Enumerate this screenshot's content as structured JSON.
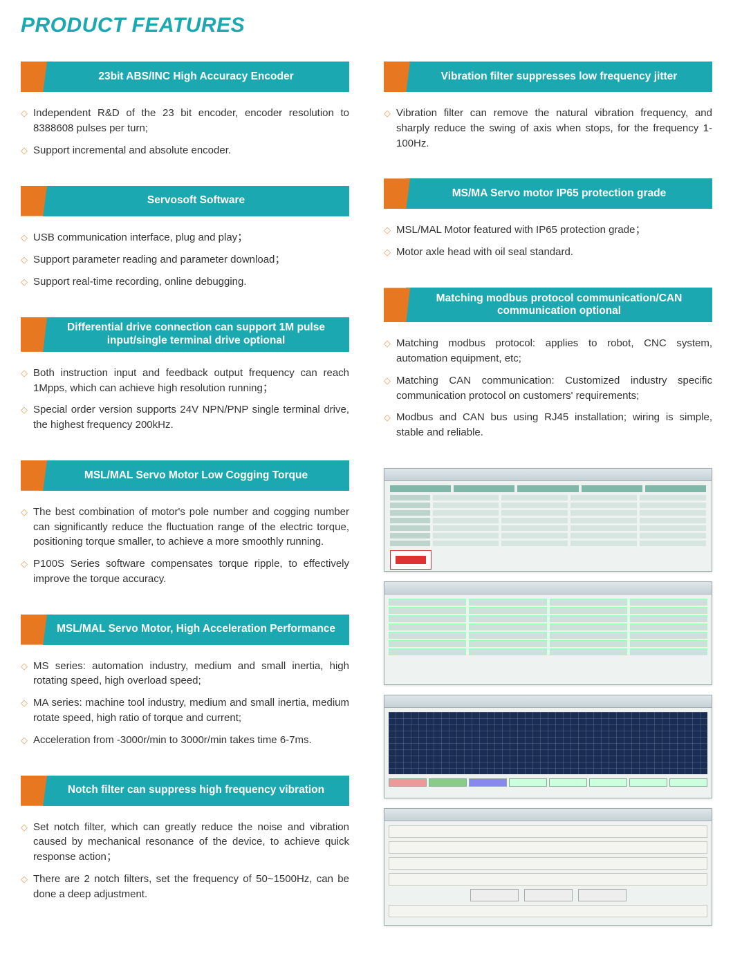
{
  "title": "PRODUCT FEATURES",
  "colors": {
    "accent_teal": "#1ba8b0",
    "accent_orange": "#e87722",
    "bullet_diamond": "#e8a05c",
    "text": "#333333",
    "background": "#ffffff"
  },
  "left": [
    {
      "heading": "23bit ABS/INC High Accuracy Encoder",
      "bullets": [
        "Independent R&D of the 23 bit encoder, encoder resolution to 8388608 pulses per turn;",
        "Support incremental and absolute encoder."
      ]
    },
    {
      "heading": "Servosoft Software",
      "bullets": [
        "USB communication interface, plug and play；",
        "Support parameter reading and parameter download；",
        "Support real-time recording, online debugging."
      ]
    },
    {
      "heading": "Differential drive connection can support 1M pulse input/single terminal drive optional",
      "tall": true,
      "bullets": [
        "Both instruction input and feedback output frequency can reach 1Mpps, which can achieve high resolution running；",
        "Special order version supports 24V NPN/PNP single terminal drive, the highest frequency 200kHz."
      ]
    },
    {
      "heading": "MSL/MAL Servo Motor Low Cogging Torque",
      "bullets": [
        "The best combination of motor's pole number and cogging number can significantly reduce the fluctuation range of the electric torque, positioning torque smaller, to achieve a more smoothly running.",
        "P100S Series software compensates torque ripple, to effectively improve the torque accuracy."
      ]
    },
    {
      "heading": "MSL/MAL Servo Motor, High Acceleration Performance",
      "bullets": [
        "MS series: automation industry, medium and small inertia, high rotating speed, high overload speed;",
        "MA series: machine tool industry, medium and small inertia, medium rotate speed, high ratio of torque and current;",
        "Acceleration from -3000r/min to 3000r/min takes time 6-7ms."
      ]
    },
    {
      "heading": "Notch filter can suppress high frequency vibration",
      "bullets": [
        "Set notch filter, which can greatly reduce the noise and vibration caused by mechanical resonance of the device, to achieve quick response action；",
        "There are 2 notch filters, set the frequency of 50~1500Hz, can be done a deep adjustment."
      ]
    }
  ],
  "right": [
    {
      "heading": "Vibration filter suppresses low frequency jitter",
      "bullets": [
        "Vibration filter can remove the natural vibration frequency, and sharply reduce the swing of axis when stops, for the frequency 1-100Hz."
      ]
    },
    {
      "heading": "MS/MA Servo motor IP65 protection grade",
      "bullets": [
        "MSL/MAL Motor featured with IP65 protection grade；",
        "Motor axle head with oil seal standard."
      ]
    },
    {
      "heading": "Matching modbus protocol communication/CAN communication optional",
      "tall": true,
      "bullets": [
        "Matching modbus protocol: applies to robot, CNC system, automation equipment, etc;",
        "Matching CAN communication: Customized industry specific communication protocol on customers' requirements;",
        "Modbus and CAN bus using RJ45 installation; wiring is simple, stable and reliable."
      ]
    }
  ],
  "software_panels": [
    {
      "type": "rows",
      "label": "parameter-table-window"
    },
    {
      "type": "form",
      "label": "config-form-window"
    },
    {
      "type": "graph",
      "label": "oscilloscope-window"
    },
    {
      "type": "ctrl",
      "label": "operation-steps-window"
    }
  ]
}
